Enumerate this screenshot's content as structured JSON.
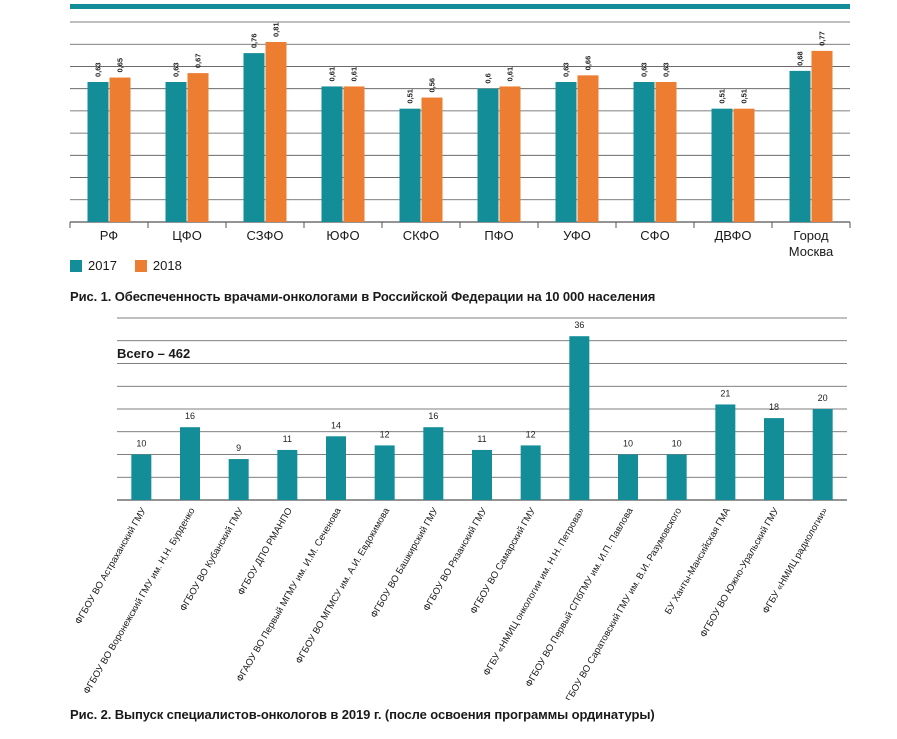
{
  "colors": {
    "teal": "#138e99",
    "orange": "#ed7d31",
    "grid": "#555555"
  },
  "figure1": {
    "caption": "Рис. 1. Обеспеченность врачами-онкологами в Российской Федерации на 10 000 населения",
    "legend": [
      "2017",
      "2018"
    ]
  },
  "figure2": {
    "caption": "Рис. 2. Выпуск специалистов-онкологов в 2019 г. (после освоения программы ординатуры)",
    "total_label": "Всего – 462"
  },
  "chart_data": [
    {
      "type": "bar",
      "title": "Рис. 1. Обеспеченность врачами-онкологами в Российской Федерации на 10 000 населения",
      "categories": [
        "РФ",
        "ЦФО",
        "СЗФО",
        "ЮФО",
        "СКФО",
        "ПФО",
        "УФО",
        "СФО",
        "ДВФО",
        "Город Москва"
      ],
      "series": [
        {
          "name": "2017",
          "values": [
            0.63,
            0.63,
            0.76,
            0.61,
            0.51,
            0.6,
            0.63,
            0.63,
            0.51,
            0.68
          ],
          "labels": [
            "0,63",
            "0,63",
            "0,76",
            "0,61",
            "0,51",
            "0,6",
            "0,63",
            "0,63",
            "0,51",
            "0,68"
          ]
        },
        {
          "name": "2018",
          "values": [
            0.65,
            0.67,
            0.81,
            0.61,
            0.56,
            0.61,
            0.66,
            0.63,
            0.51,
            0.77
          ],
          "labels": [
            "0,65",
            "0,67",
            "0,81",
            "0,61",
            "0,56",
            "0,61",
            "0,66",
            "0,63",
            "0,51",
            "0,77"
          ]
        }
      ],
      "ylim": [
        0,
        0.9
      ],
      "grid": true,
      "legend_position": "bottom-left"
    },
    {
      "type": "bar",
      "title": "Рис. 2. Выпуск специалистов-онкологов в 2019 г. (после освоения программы ординатуры)",
      "categories": [
        "ФГБОУ ВО Астраханский ГМУ",
        "ФГБОУ ВО Воронежский ГМУ им. Н.Н. Бурденко",
        "ФГБОУ ВО Кубанский ГМУ",
        "ФГБОУ ДПО РМАНПО",
        "ФГАОУ ВО Первый МГМУ им. И.М. Сеченова",
        "ФГБОУ ВО МГМСУ им. А.И. Евдокимова",
        "ФГБОУ ВО Башкирский ГМУ",
        "ФГБОУ ВО Рязанский ГМУ",
        "ФГБОУ ВО Самарский ГМУ",
        "ФГБУ «НМИЦ онкологии им. Н.Н. Петрова»",
        "ФГБОУ ВО Первый СПбГМУ им. И.П. Павлова",
        "ФГБОУ ВО Саратовский ГМУ им. В.И. Разумовского",
        "БУ Ханты-Мансийская ГМА",
        "ФГБОУ ВО Южно-Уральский ГМУ",
        "ФГБУ «НМИЦ радиологии»"
      ],
      "values": [
        10,
        16,
        9,
        11,
        14,
        12,
        16,
        11,
        12,
        36,
        10,
        10,
        21,
        18,
        20
      ],
      "ylim": [
        0,
        40
      ],
      "grid": true,
      "annotation": "Всего – 462"
    }
  ]
}
